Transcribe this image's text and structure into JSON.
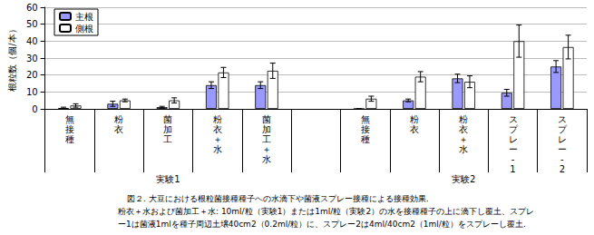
{
  "chart_data": {
    "type": "bar",
    "title": "図２. 大豆における根粒菌接種種子への水滴下や菌液スプレー接種による接種効果.",
    "notes": [
      "粉衣＋水および菌加工＋水: 10ml/粒（実験1）または1ml/粒（実験2）の水を接種種子の上に滴下し覆土、スプレ",
      "ー1は菌液1mlを種子周辺土壌40cm2（0.2ml/粒）に、スプレー2は4ml/40cm2（1ml/粒）をスプレーし覆土."
    ],
    "y_label": "根粒数（個/本）",
    "categories": [
      "無接種",
      "粉衣",
      "菌加工",
      "粉衣＋水",
      "菌加工＋水",
      null,
      "無接種",
      "粉衣",
      "粉衣＋水",
      "スプレー-1",
      "スプレー-2"
    ],
    "groups": [
      {
        "label": "実験1",
        "from": 0,
        "to": 4
      },
      {
        "label": "実験2",
        "from": 6,
        "to": 10
      }
    ],
    "series": [
      {
        "name": "主根",
        "color": "#9999ff",
        "values": [
          0.5,
          3,
          1,
          14,
          14,
          null,
          0,
          5,
          18,
          9.5,
          25
        ],
        "errors": [
          0.5,
          1.5,
          0.5,
          2,
          2,
          null,
          0,
          0.8,
          2.5,
          2,
          3.5
        ]
      },
      {
        "name": "側根",
        "color": "#ffffff",
        "values": [
          2,
          5,
          5,
          21.5,
          22.5,
          null,
          6,
          19,
          16,
          40,
          36.5
        ],
        "errors": [
          1,
          0.8,
          1.5,
          3,
          4.5,
          null,
          1.5,
          3,
          3.5,
          9.5,
          7
        ]
      }
    ],
    "ylim": [
      0,
      60
    ],
    "yticks": [
      0,
      10,
      20,
      30,
      40,
      50,
      60
    ],
    "grid": true,
    "legend": "top-left"
  }
}
